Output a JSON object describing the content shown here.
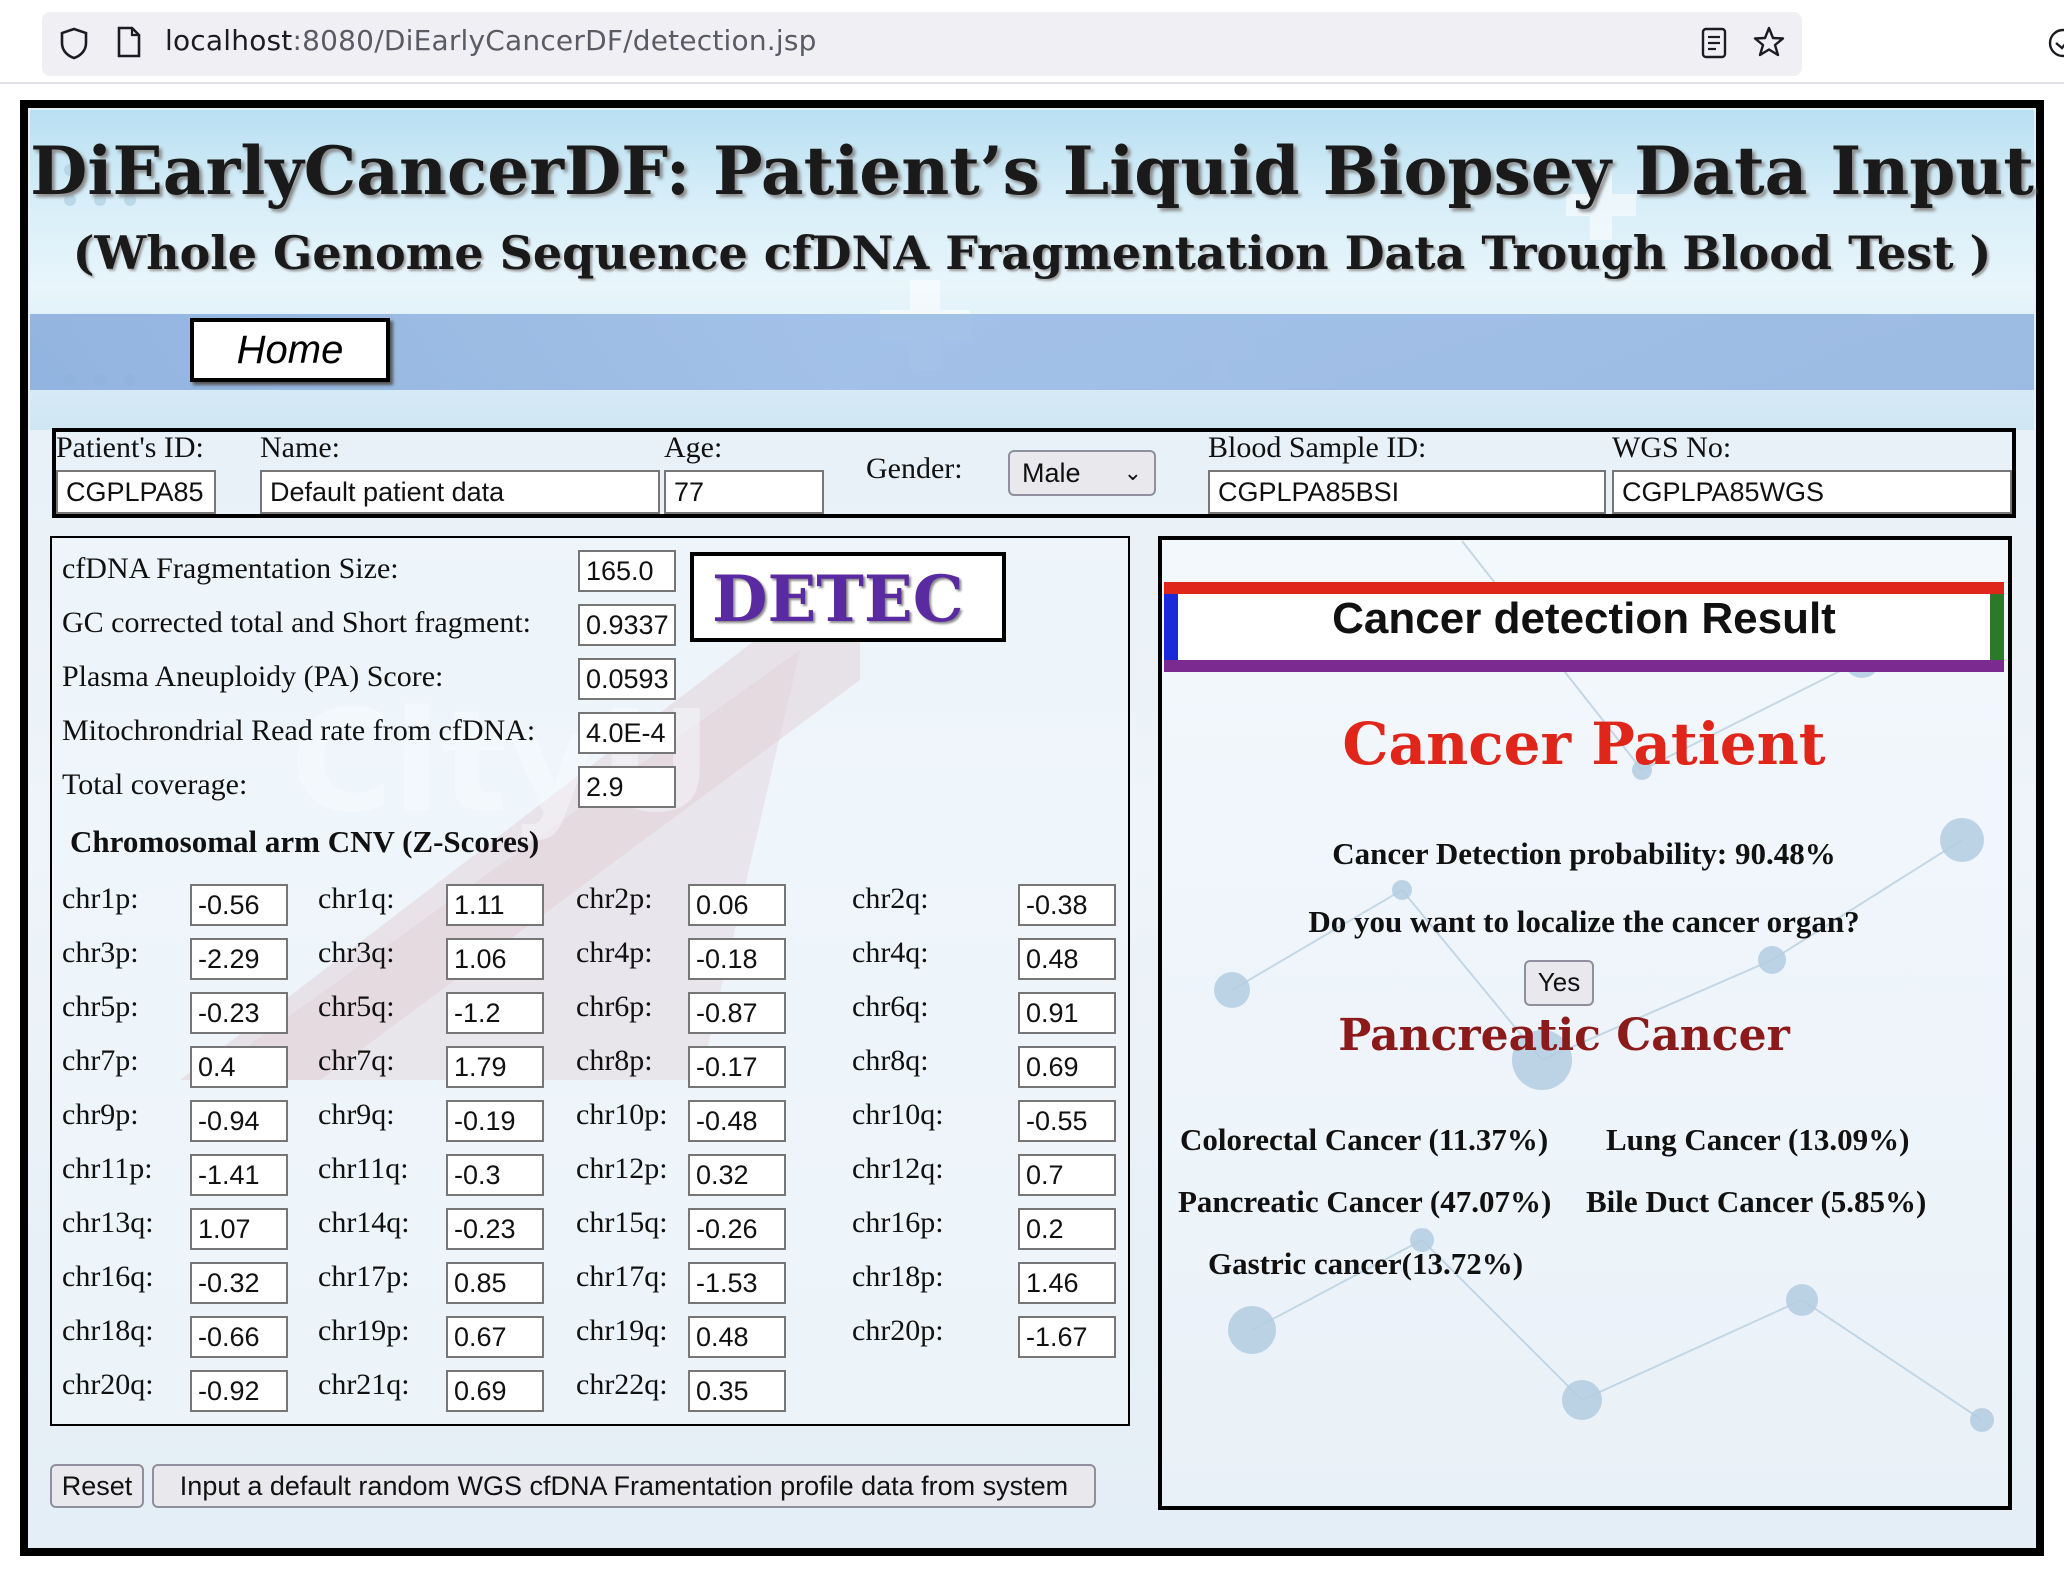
{
  "browser": {
    "url_host": "localhost",
    "url_path": ":8080/DiEarlyCancerDF/detection.jsp"
  },
  "header": {
    "title": "DiEarlyCancerDF:  Patient’s Liquid Biopsey Data Input",
    "subtitle": "(Whole Genome Sequence cfDNA Fragmentation Data Trough Blood Test )",
    "home_label": "Home"
  },
  "patient": {
    "id_label": "Patient's ID:",
    "id_value": "CGPLPA85",
    "name_label": "Name:",
    "name_value": "Default patient data",
    "age_label": "Age:",
    "age_value": "77",
    "gender_label": "Gender:",
    "gender_value": "Male",
    "blood_label": "Blood Sample ID:",
    "blood_value": "CGPLPA85BSI",
    "wgs_label": "WGS No:",
    "wgs_value": "CGPLPA85WGS"
  },
  "features": [
    {
      "label": "cfDNA Fragmentation Size:",
      "value": "165.0"
    },
    {
      "label": "GC corrected total and Short fragment:",
      "value": "0.9337"
    },
    {
      "label": "Plasma Aneuploidy (PA) Score:",
      "value": "0.0593"
    },
    {
      "label": "Mitochrondrial Read rate from cfDNA:",
      "value": "4.0E-4"
    },
    {
      "label": "Total coverage:",
      "value": "2.9"
    }
  ],
  "detect_label": "DETEC",
  "cnv_heading": "Chromosomal arm CNV (Z-Scores)",
  "cnv": [
    [
      {
        "label": "chr1p:",
        "value": "-0.56"
      },
      {
        "label": "chr1q:",
        "value": "1.11"
      },
      {
        "label": "chr2p:",
        "value": "0.06"
      },
      {
        "label": "chr2q:",
        "value": "-0.38"
      }
    ],
    [
      {
        "label": "chr3p:",
        "value": "-2.29"
      },
      {
        "label": "chr3q:",
        "value": "1.06"
      },
      {
        "label": "chr4p:",
        "value": "-0.18"
      },
      {
        "label": "chr4q:",
        "value": "0.48"
      }
    ],
    [
      {
        "label": "chr5p:",
        "value": "-0.23"
      },
      {
        "label": "chr5q:",
        "value": "-1.2"
      },
      {
        "label": "chr6p:",
        "value": "-0.87"
      },
      {
        "label": "chr6q:",
        "value": "0.91"
      }
    ],
    [
      {
        "label": "chr7p:",
        "value": "0.4"
      },
      {
        "label": "chr7q:",
        "value": "1.79"
      },
      {
        "label": "chr8p:",
        "value": "-0.17"
      },
      {
        "label": "chr8q:",
        "value": "0.69"
      }
    ],
    [
      {
        "label": "chr9p:",
        "value": "-0.94"
      },
      {
        "label": "chr9q:",
        "value": "-0.19"
      },
      {
        "label": "chr10p:",
        "value": "-0.48"
      },
      {
        "label": "chr10q:",
        "value": "-0.55"
      }
    ],
    [
      {
        "label": "chr11p:",
        "value": "-1.41"
      },
      {
        "label": "chr11q:",
        "value": "-0.3"
      },
      {
        "label": "chr12p:",
        "value": "0.32"
      },
      {
        "label": "chr12q:",
        "value": "0.7"
      }
    ],
    [
      {
        "label": "chr13q:",
        "value": "1.07"
      },
      {
        "label": "chr14q:",
        "value": "-0.23"
      },
      {
        "label": "chr15q:",
        "value": "-0.26"
      },
      {
        "label": "chr16p:",
        "value": "0.2"
      }
    ],
    [
      {
        "label": "chr16q:",
        "value": "-0.32"
      },
      {
        "label": "chr17p:",
        "value": "0.85"
      },
      {
        "label": "chr17q:",
        "value": "-1.53"
      },
      {
        "label": "chr18p:",
        "value": "1.46"
      }
    ],
    [
      {
        "label": "chr18q:",
        "value": "-0.66"
      },
      {
        "label": "chr19p:",
        "value": "0.67"
      },
      {
        "label": "chr19q:",
        "value": "0.48"
      },
      {
        "label": "chr20p:",
        "value": "-1.67"
      }
    ],
    [
      {
        "label": "chr20q:",
        "value": "-0.92"
      },
      {
        "label": "chr21q:",
        "value": "0.69"
      },
      {
        "label": "chr22q:",
        "value": "0.35"
      }
    ]
  ],
  "buttons": {
    "reset": "Reset",
    "default_input": "Input a default random WGS cfDNA Framentation profile data from system"
  },
  "result": {
    "title": "Cancer detection Result",
    "status": "Cancer Patient",
    "probability": "Cancer Detection probability: 90.48%",
    "localize_question": "Do you want to localize the cancer organ?",
    "yes_label": "Yes",
    "organ": "Pancreatic Cancer",
    "organ_probs": {
      "colorectal": "Colorectal Cancer (11.37%)",
      "lung": "Lung Cancer (13.09%)",
      "pancreatic": "Pancreatic Cancer (47.07%)",
      "bile_duct": "Bile Duct Cancer (5.85%)",
      "gastric": "Gastric cancer(13.72%)"
    }
  },
  "colors": {
    "status_red": "#e0261b",
    "organ_dark_red": "#8b1a1a",
    "detect_purple": "#5a2aa0",
    "header_red": "#e0261b",
    "header_purple": "#7b2a8f",
    "header_blue": "#1a2ad8",
    "header_green": "#2a7a2a"
  }
}
